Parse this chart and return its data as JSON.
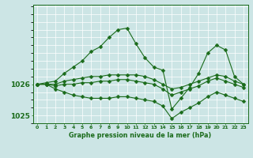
{
  "background_color": "#cce5e5",
  "grid_color": "#ffffff",
  "line_color": "#1a6b1a",
  "marker_color": "#1a6b1a",
  "title": "Graphe pression niveau de la mer (hPa)",
  "xlim": [
    -0.5,
    23.5
  ],
  "ylim": [
    1024.75,
    1028.55
  ],
  "yticks": [
    1025,
    1026
  ],
  "xticks": [
    0,
    1,
    2,
    3,
    4,
    5,
    6,
    7,
    8,
    9,
    10,
    11,
    12,
    13,
    14,
    15,
    16,
    17,
    18,
    19,
    20,
    21,
    22,
    23
  ],
  "series": [
    [
      1026.0,
      1026.05,
      1026.1,
      1026.35,
      1026.55,
      1026.75,
      1027.05,
      1027.2,
      1027.5,
      1027.75,
      1027.8,
      1027.3,
      1026.85,
      1026.55,
      1026.45,
      1025.2,
      1025.55,
      1025.9,
      1026.35,
      1027.0,
      1027.25,
      1027.1,
      1026.25,
      1026.0
    ],
    [
      1026.0,
      1026.0,
      1026.0,
      1026.1,
      1026.15,
      1026.2,
      1026.25,
      1026.25,
      1026.3,
      1026.3,
      1026.3,
      1026.3,
      1026.25,
      1026.15,
      1026.0,
      1025.85,
      1025.9,
      1026.0,
      1026.1,
      1026.2,
      1026.3,
      1026.25,
      1026.1,
      1026.0
    ],
    [
      1026.0,
      1026.0,
      1025.95,
      1026.0,
      1026.0,
      1026.05,
      1026.05,
      1026.1,
      1026.1,
      1026.15,
      1026.15,
      1026.1,
      1026.05,
      1026.0,
      1025.85,
      1025.65,
      1025.75,
      1025.85,
      1025.95,
      1026.1,
      1026.2,
      1026.1,
      1026.0,
      1025.9
    ],
    [
      1026.0,
      1026.0,
      1025.85,
      1025.75,
      1025.65,
      1025.6,
      1025.55,
      1025.55,
      1025.55,
      1025.6,
      1025.6,
      1025.55,
      1025.5,
      1025.45,
      1025.3,
      1024.9,
      1025.1,
      1025.25,
      1025.4,
      1025.6,
      1025.75,
      1025.65,
      1025.55,
      1025.45
    ]
  ]
}
